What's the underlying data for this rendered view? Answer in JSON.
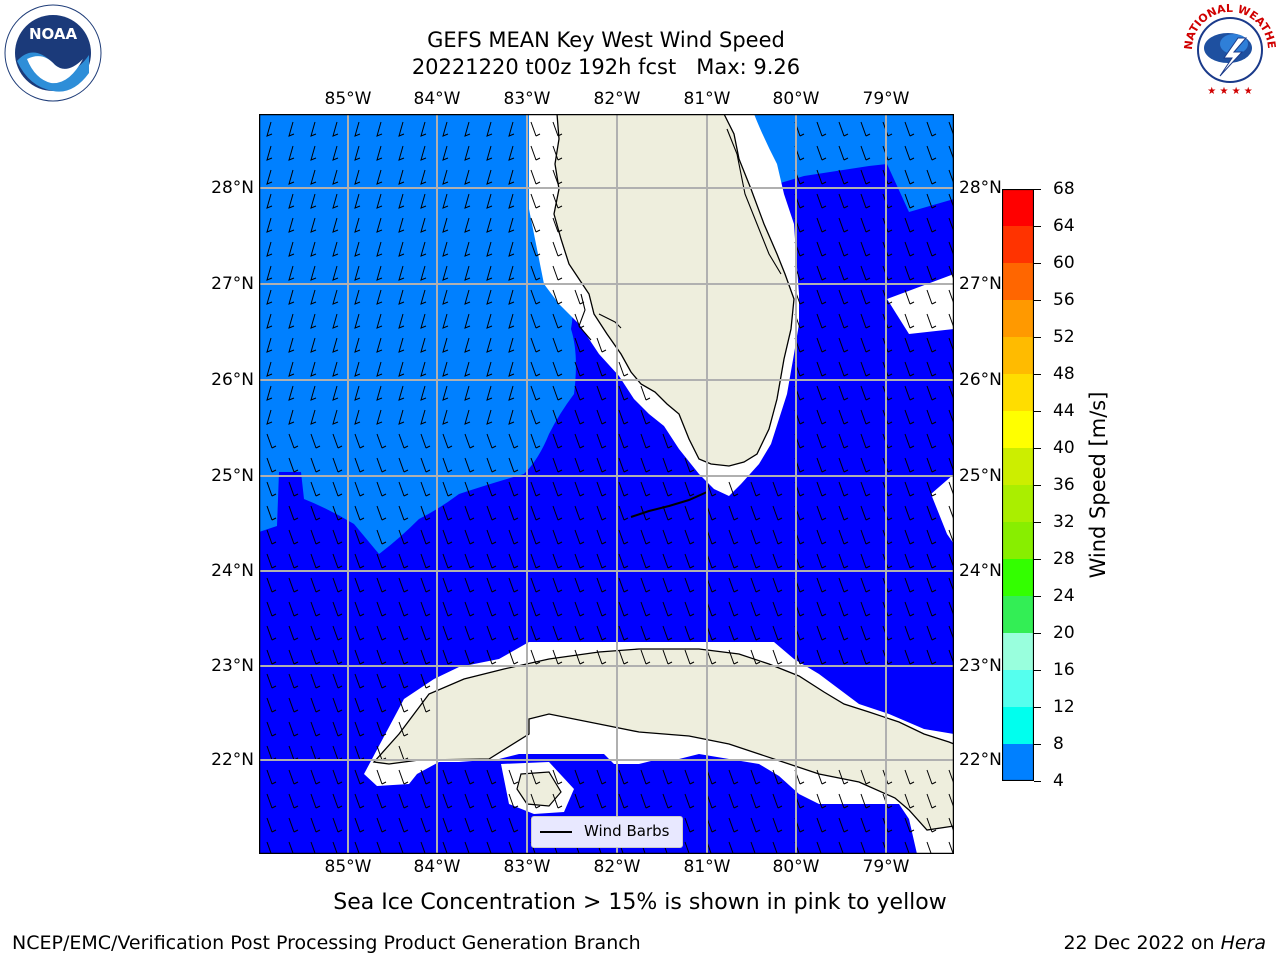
{
  "title": {
    "line1": "GEFS MEAN Key West Wind Speed",
    "line2": "20221220 t00z 192h fcst   Max: 9.26"
  },
  "logos": {
    "noaa_text": "NOAA",
    "nws_text": "NATIONAL WEATHER SERVICE"
  },
  "map": {
    "lon_labels": [
      "85°W",
      "84°W",
      "83°W",
      "82°W",
      "81°W",
      "80°W",
      "79°W"
    ],
    "lat_labels": [
      "28°N",
      "27°N",
      "26°N",
      "25°N",
      "24°N",
      "23°N",
      "22°N"
    ],
    "colors": {
      "band_4_8": "#0000ff",
      "band_8_12": "#0080ff",
      "land": "#eeeedd",
      "grid": "#b0b0b0"
    },
    "legend_label": "Wind Barbs"
  },
  "colorbar": {
    "label": "Wind Speed [m/s]",
    "ticks": [
      "68",
      "64",
      "60",
      "56",
      "52",
      "48",
      "44",
      "40",
      "36",
      "32",
      "28",
      "24",
      "20",
      "16",
      "12",
      "8",
      "4"
    ],
    "colors": [
      "#ff0000",
      "#ff3300",
      "#ff6600",
      "#ff9900",
      "#ffbb00",
      "#ffdd00",
      "#ffff00",
      "#ccee00",
      "#aaee00",
      "#88ee00",
      "#33ff00",
      "#33ee55",
      "#99ffdd",
      "#55ffee",
      "#00ffee",
      "#0080ff",
      "#0000ff"
    ]
  },
  "notes": {
    "sea_ice": "Sea Ice Concentration > 15% is shown in pink to yellow",
    "producer": "NCEP/EMC/Verification Post Processing Product Generation Branch",
    "date": "22 Dec 2022 on ",
    "machine": "Hera"
  }
}
